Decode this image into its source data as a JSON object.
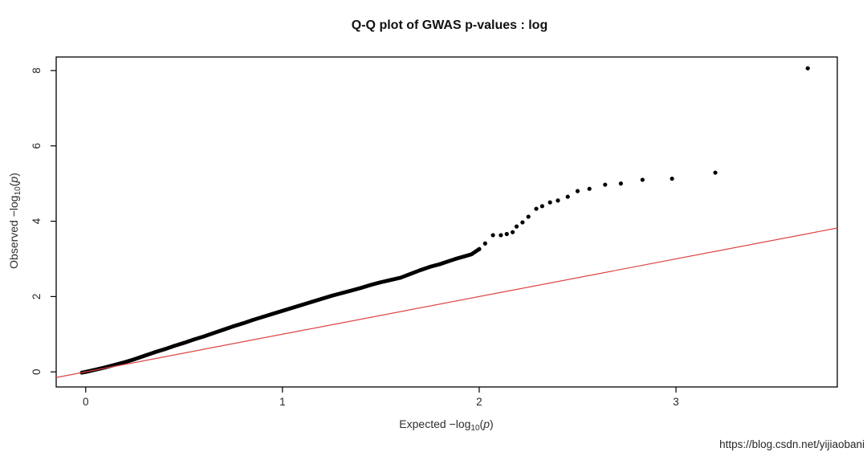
{
  "page": {
    "background": "#ffffff"
  },
  "watermark": {
    "text": "https://blog.csdn.net/yijiaobani",
    "color": "#e7e7e5"
  },
  "chart_data": {
    "type": "scatter",
    "title": "Q-Q plot of GWAS p-values : log",
    "xlabel": "Expected −log10(p)",
    "ylabel": "Observed −log10(p)",
    "xlabel_parts": {
      "main": "Expected −log",
      "sub": "10",
      "open": "(",
      "var": "p",
      "close": ")"
    },
    "ylabel_parts": {
      "main": "Observed −log",
      "sub": "10",
      "open": "(",
      "var": "p",
      "close": ")"
    },
    "xlim": [
      -0.15,
      3.82
    ],
    "ylim": [
      -0.4,
      8.36
    ],
    "xticks": [
      0,
      1,
      2,
      3
    ],
    "yticks": [
      0,
      2,
      4,
      6,
      8
    ],
    "grid": false,
    "legend_position": "none",
    "colors": {
      "points": "#000000",
      "reference_line": "#dd4444",
      "axis": "#000000",
      "tick_labels": "#333333"
    },
    "reference_line": {
      "type": "identity",
      "slope": 1,
      "intercept": 0
    },
    "series": [
      {
        "name": "observed-quantiles-dense-band",
        "style": "band",
        "points": [
          [
            -0.02,
            -0.02
          ],
          [
            0.0,
            0.0
          ],
          [
            0.05,
            0.06
          ],
          [
            0.1,
            0.12
          ],
          [
            0.15,
            0.19
          ],
          [
            0.2,
            0.26
          ],
          [
            0.25,
            0.34
          ],
          [
            0.3,
            0.43
          ],
          [
            0.35,
            0.52
          ],
          [
            0.4,
            0.6
          ],
          [
            0.45,
            0.69
          ],
          [
            0.5,
            0.77
          ],
          [
            0.55,
            0.86
          ],
          [
            0.6,
            0.94
          ],
          [
            0.65,
            1.03
          ],
          [
            0.7,
            1.12
          ],
          [
            0.75,
            1.21
          ],
          [
            0.8,
            1.29
          ],
          [
            0.85,
            1.38
          ],
          [
            0.9,
            1.46
          ],
          [
            0.95,
            1.54
          ],
          [
            1.0,
            1.62
          ],
          [
            1.05,
            1.7
          ],
          [
            1.1,
            1.78
          ],
          [
            1.15,
            1.86
          ],
          [
            1.2,
            1.94
          ],
          [
            1.25,
            2.02
          ],
          [
            1.3,
            2.09
          ],
          [
            1.35,
            2.16
          ],
          [
            1.4,
            2.23
          ],
          [
            1.45,
            2.31
          ],
          [
            1.5,
            2.38
          ],
          [
            1.55,
            2.44
          ],
          [
            1.6,
            2.5
          ],
          [
            1.65,
            2.6
          ],
          [
            1.7,
            2.7
          ],
          [
            1.75,
            2.79
          ],
          [
            1.8,
            2.86
          ],
          [
            1.84,
            2.93
          ],
          [
            1.88,
            3.0
          ],
          [
            1.92,
            3.06
          ],
          [
            1.96,
            3.12
          ],
          [
            2.0,
            3.26
          ]
        ]
      },
      {
        "name": "observed-quantiles-upper-tail",
        "style": "dots",
        "points": [
          [
            2.0,
            3.26
          ],
          [
            2.03,
            3.41
          ],
          [
            2.07,
            3.63
          ],
          [
            2.11,
            3.63
          ],
          [
            2.14,
            3.66
          ],
          [
            2.17,
            3.71
          ],
          [
            2.19,
            3.86
          ],
          [
            2.22,
            3.97
          ],
          [
            2.25,
            4.12
          ],
          [
            2.29,
            4.33
          ],
          [
            2.32,
            4.4
          ],
          [
            2.36,
            4.5
          ],
          [
            2.4,
            4.55
          ],
          [
            2.45,
            4.65
          ],
          [
            2.5,
            4.8
          ],
          [
            2.56,
            4.86
          ],
          [
            2.64,
            4.97
          ],
          [
            2.72,
            5.0
          ],
          [
            2.83,
            5.1
          ],
          [
            2.98,
            5.13
          ],
          [
            3.2,
            5.29
          ],
          [
            3.67,
            8.06
          ]
        ]
      }
    ]
  }
}
